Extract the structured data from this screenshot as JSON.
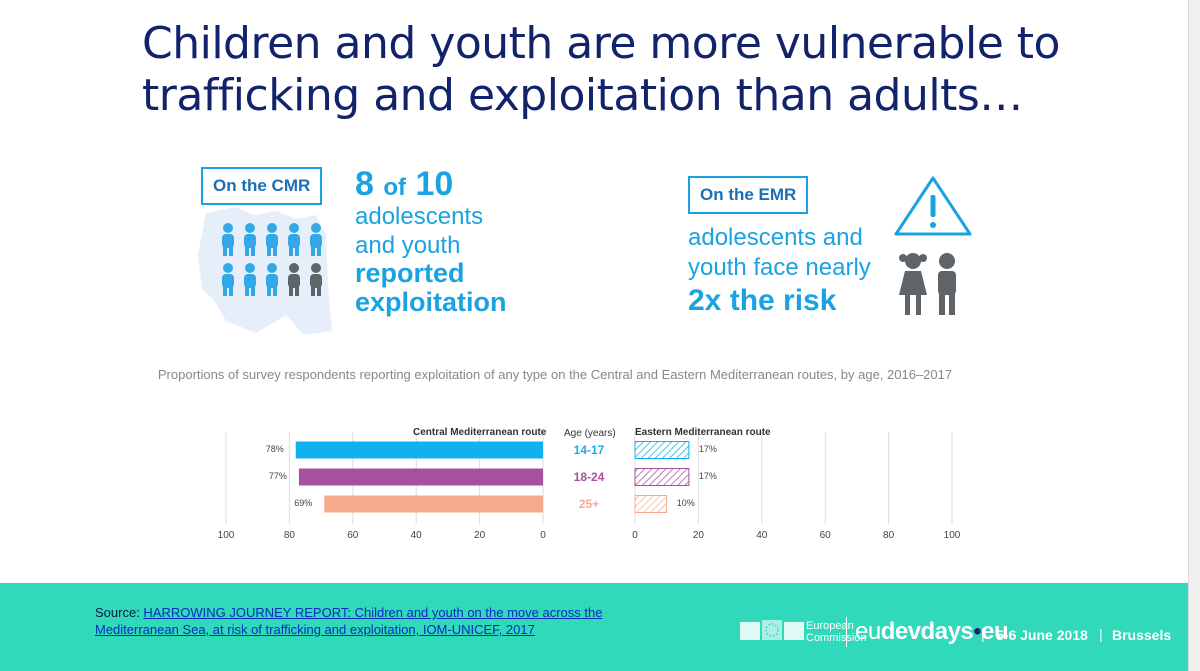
{
  "title": "Children and youth are more vulnerable to trafficking and exploitation than adults…",
  "cmr": {
    "label": "On the CMR",
    "stat_a": "8",
    "stat_of": "of",
    "stat_b": "10",
    "line1": "adolescents",
    "line2": "and youth",
    "line3": "reported",
    "line4": "exploitation"
  },
  "emr": {
    "label": "On the EMR",
    "line1": "adolescents and",
    "line2": "youth face nearly",
    "line3": "2x the risk"
  },
  "caption": "Proportions of survey respondents reporting exploitation of any type on the Central and Eastern Mediterranean routes, by age, 2016–2017",
  "chart_data": {
    "type": "bar",
    "orientation": "horizontal, mirrored",
    "categories": [
      "14-17",
      "18-24",
      "25+"
    ],
    "series": [
      {
        "name": "Central Mediterranean route",
        "values": [
          78,
          77,
          69
        ]
      },
      {
        "name": "Eastern Mediterranean route",
        "values": [
          17,
          17,
          10
        ]
      }
    ],
    "value_labels": {
      "central": [
        "78%",
        "77%",
        "69%"
      ],
      "eastern": [
        "17%",
        "17%",
        "10%"
      ]
    },
    "xlim": [
      0,
      100
    ],
    "ticks_left": [
      "100",
      "80",
      "60",
      "40",
      "20",
      "0"
    ],
    "ticks_right": [
      "0",
      "20",
      "40",
      "60",
      "80",
      "100"
    ],
    "middle_header": "Age (years)",
    "colors": [
      "#10b1ee",
      "#a4519e",
      "#f7a98d"
    ],
    "grid": true
  },
  "source": {
    "prefix": "Source: ",
    "link_line1": "HARROWING JOURNEY REPORT: Children and youth on the move across the",
    "link_line2": "Mediterranean Sea, at risk of trafficking and exploitation, IOM-UNICEF, 2017"
  },
  "footer": {
    "ec_line1": "European",
    "ec_line2": "Commission",
    "site_eu": "eu",
    "site_dev": "devdays",
    "site_dot": "•",
    "site_tld": "eu",
    "sep": "|",
    "dates": "5-6 June 2018",
    "city": "Brussels"
  },
  "colors": {
    "title": "#12236b",
    "accent": "#1aa3e0",
    "footer_bg": "#2fd9b9"
  }
}
